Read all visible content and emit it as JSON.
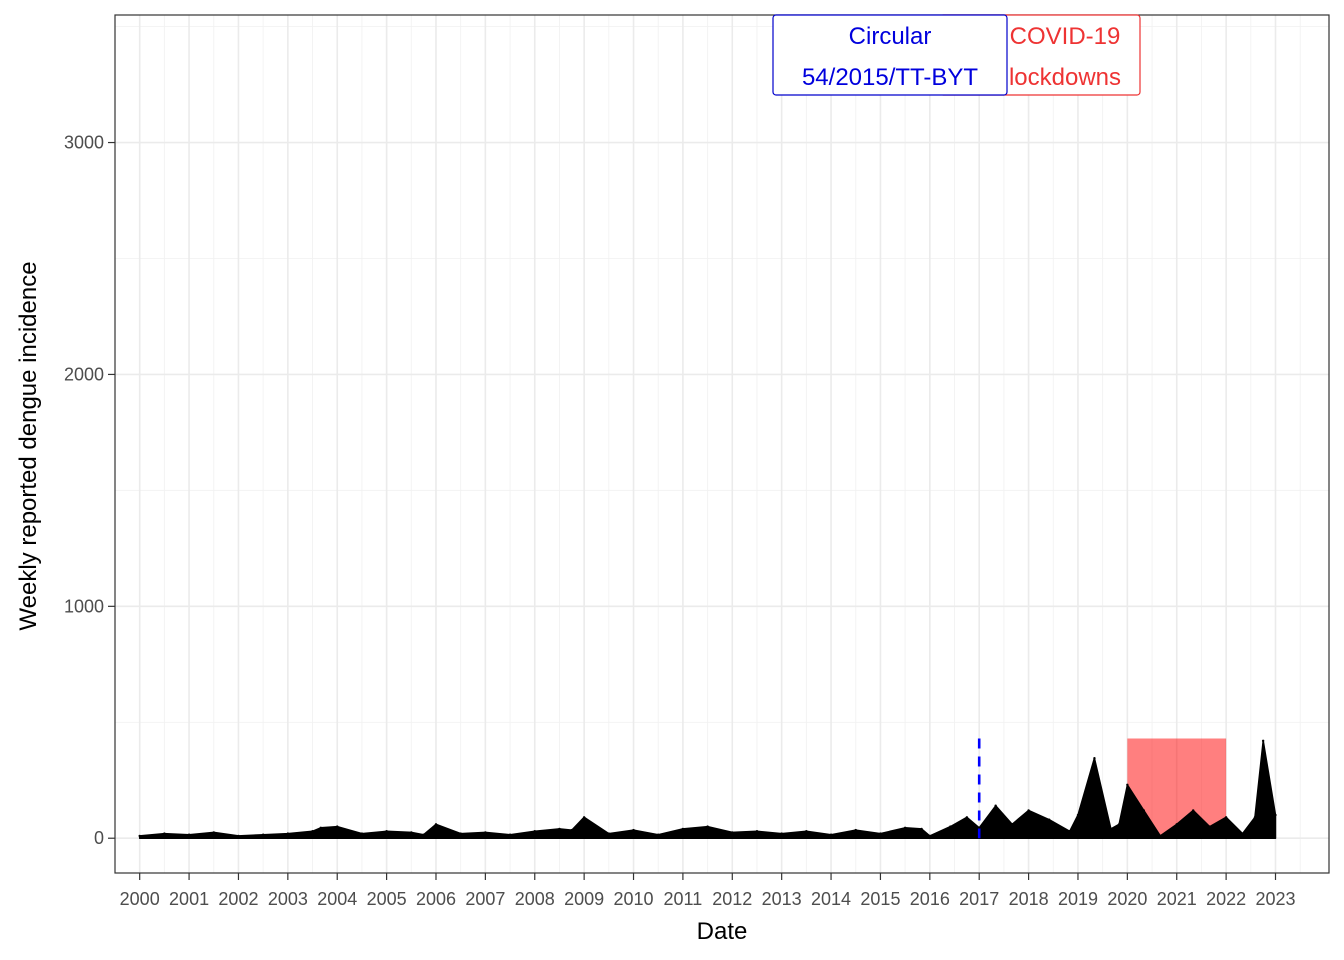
{
  "chart_data": {
    "type": "line",
    "title": "",
    "xlabel": "Date",
    "ylabel": "Weekly reported dengue incidence",
    "x_ticks": [
      "2000",
      "2001",
      "2002",
      "2003",
      "2004",
      "2005",
      "2006",
      "2007",
      "2008",
      "2009",
      "2010",
      "2011",
      "2012",
      "2013",
      "2014",
      "2015",
      "2016",
      "2017",
      "2018",
      "2019",
      "2020",
      "2021",
      "2022",
      "2023"
    ],
    "y_ticks": [
      0,
      1000,
      2000,
      3000
    ],
    "xlim": [
      "1999-07",
      "2024-02"
    ],
    "ylim": [
      -150,
      3550
    ],
    "grid": true,
    "series": [
      {
        "color": "#000000",
        "x": [
          "2000-01",
          "2000-07",
          "2001-01",
          "2001-07",
          "2002-01",
          "2002-07",
          "2003-01",
          "2003-07",
          "2003-09",
          "2004-01",
          "2004-07",
          "2005-01",
          "2005-07",
          "2005-10",
          "2006-01",
          "2006-07",
          "2007-01",
          "2007-07",
          "2008-01",
          "2008-07",
          "2008-10",
          "2009-01",
          "2009-07",
          "2010-01",
          "2010-07",
          "2011-01",
          "2011-07",
          "2012-01",
          "2012-07",
          "2013-01",
          "2013-07",
          "2014-01",
          "2014-07",
          "2015-01",
          "2015-07",
          "2015-11",
          "2016-01",
          "2016-06",
          "2016-10",
          "2017-01",
          "2017-05",
          "2017-09",
          "2018-01",
          "2018-06",
          "2018-11",
          "2019-01",
          "2019-05",
          "2019-09",
          "2019-11",
          "2020-01",
          "2020-05",
          "2020-09",
          "2021-01",
          "2021-05",
          "2021-09",
          "2022-01",
          "2022-05",
          "2022-08",
          "2022-10",
          "2023-01"
        ],
        "values": [
          10,
          20,
          15,
          25,
          10,
          15,
          20,
          30,
          45,
          50,
          20,
          30,
          25,
          15,
          60,
          20,
          25,
          15,
          30,
          40,
          35,
          90,
          20,
          35,
          15,
          40,
          50,
          25,
          30,
          20,
          30,
          15,
          35,
          20,
          45,
          40,
          10,
          50,
          90,
          45,
          140,
          60,
          120,
          80,
          30,
          100,
          345,
          40,
          60,
          230,
          120,
          10,
          60,
          120,
          50,
          90,
          20,
          90,
          420,
          100
        ]
      }
    ],
    "annotations": {
      "circular": {
        "line1": "Circular",
        "line2": "54/2015/TT-BYT",
        "date": "2017-01",
        "line_top": 430,
        "color": "#0000ff"
      },
      "covid": {
        "line1": "COVID-19",
        "line2": "lockdowns",
        "start": "2020-01",
        "end": "2022-01",
        "top": 430,
        "color": "#ff0000"
      }
    }
  }
}
